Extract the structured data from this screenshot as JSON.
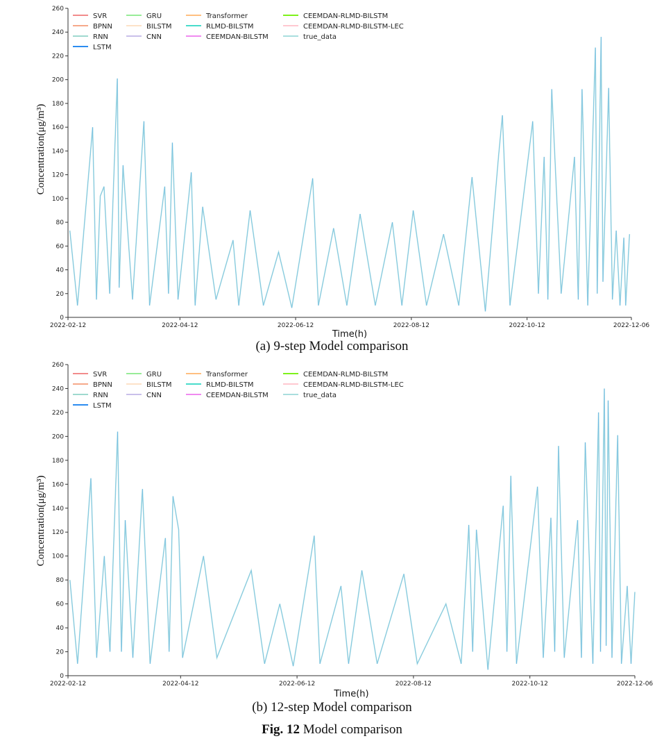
{
  "figure_caption": {
    "label": "Fig. 12",
    "text": "Model comparison"
  },
  "legend": [
    {
      "name": "SVR",
      "color": "#f28b8b"
    },
    {
      "name": "BPNN",
      "color": "#f6a98a"
    },
    {
      "name": "RNN",
      "color": "#9fd9cf"
    },
    {
      "name": "LSTM",
      "color": "#2b8cf0"
    },
    {
      "name": "GRU",
      "color": "#98ec98"
    },
    {
      "name": "BILSTM",
      "color": "#fde2c8"
    },
    {
      "name": "CNN",
      "color": "#c9c0ea"
    },
    {
      "name": "Transformer",
      "color": "#ffbf80"
    },
    {
      "name": "RLMD-BILSTM",
      "color": "#48dccb"
    },
    {
      "name": "CEEMDAN-BILSTM",
      "color": "#f08af0"
    },
    {
      "name": "CEEMDAN-RLMD-BILSTM",
      "color": "#7ef21a"
    },
    {
      "name": "CEEMDAN-RLMD-BILSTM-LEC",
      "color": "#ffc8d0"
    },
    {
      "name": "true_data",
      "color": "#a9dede"
    }
  ],
  "chart_data": [
    {
      "type": "line",
      "caption": "(a) 9-step Model comparison",
      "xlabel": "Time(h)",
      "ylabel": "Concentration(μg/m³)",
      "xlim": [
        "2022-02-12",
        "2022-12-06"
      ],
      "ylim": [
        0,
        260
      ],
      "xticks": [
        "2022-02-12",
        "2022-04-12",
        "2022-06-12",
        "2022-08-12",
        "2022-10-12",
        "2022-12-06"
      ],
      "yticks": [
        0,
        20,
        40,
        60,
        80,
        100,
        120,
        140,
        160,
        180,
        200,
        220,
        240,
        260
      ],
      "legend_position": "top-left",
      "grid": false,
      "series": [
        {
          "name": "true_data",
          "points": [
            [
              "2022-02-13",
              73
            ],
            [
              "2022-02-17",
              10
            ],
            [
              "2022-02-25",
              160
            ],
            [
              "2022-02-27",
              15
            ],
            [
              "2022-03-01",
              102
            ],
            [
              "2022-03-03",
              110
            ],
            [
              "2022-03-06",
              20
            ],
            [
              "2022-03-10",
              201
            ],
            [
              "2022-03-11",
              25
            ],
            [
              "2022-03-13",
              128
            ],
            [
              "2022-03-18",
              15
            ],
            [
              "2022-03-24",
              165
            ],
            [
              "2022-03-27",
              10
            ],
            [
              "2022-04-04",
              110
            ],
            [
              "2022-04-06",
              20
            ],
            [
              "2022-04-08",
              147
            ],
            [
              "2022-04-11",
              15
            ],
            [
              "2022-04-18",
              122
            ],
            [
              "2022-04-20",
              10
            ],
            [
              "2022-04-24",
              93
            ],
            [
              "2022-05-01",
              15
            ],
            [
              "2022-05-10",
              65
            ],
            [
              "2022-05-13",
              10
            ],
            [
              "2022-05-19",
              90
            ],
            [
              "2022-05-26",
              10
            ],
            [
              "2022-06-03",
              55
            ],
            [
              "2022-06-10",
              8
            ],
            [
              "2022-06-21",
              117
            ],
            [
              "2022-06-24",
              10
            ],
            [
              "2022-07-02",
              75
            ],
            [
              "2022-07-09",
              10
            ],
            [
              "2022-07-16",
              87
            ],
            [
              "2022-07-24",
              10
            ],
            [
              "2022-08-02",
              80
            ],
            [
              "2022-08-07",
              10
            ],
            [
              "2022-08-13",
              90
            ],
            [
              "2022-08-20",
              10
            ],
            [
              "2022-08-29",
              70
            ],
            [
              "2022-09-06",
              10
            ],
            [
              "2022-09-13",
              118
            ],
            [
              "2022-09-20",
              5
            ],
            [
              "2022-09-27",
              136
            ],
            [
              "2022-09-29",
              170
            ],
            [
              "2022-10-03",
              10
            ],
            [
              "2022-10-15",
              165
            ],
            [
              "2022-10-18",
              20
            ],
            [
              "2022-10-21",
              135
            ],
            [
              "2022-10-23",
              15
            ],
            [
              "2022-10-25",
              192
            ],
            [
              "2022-10-30",
              20
            ],
            [
              "2022-11-06",
              135
            ],
            [
              "2022-11-08",
              15
            ],
            [
              "2022-11-10",
              192
            ],
            [
              "2022-11-13",
              10
            ],
            [
              "2022-11-17",
              227
            ],
            [
              "2022-11-18",
              20
            ],
            [
              "2022-11-20",
              236
            ],
            [
              "2022-11-21",
              30
            ],
            [
              "2022-11-24",
              193
            ],
            [
              "2022-11-26",
              15
            ],
            [
              "2022-11-28",
              73
            ],
            [
              "2022-11-30",
              10
            ],
            [
              "2022-12-02",
              67
            ],
            [
              "2022-12-03",
              10
            ],
            [
              "2022-12-05",
              70
            ]
          ]
        }
      ]
    },
    {
      "type": "line",
      "caption": "(b) 12-step Model comparison",
      "xlabel": "Time(h)",
      "ylabel": "Concentration(μg/m³)",
      "xlim": [
        "2022-02-12",
        "2022-12-06"
      ],
      "ylim": [
        0,
        260
      ],
      "xticks": [
        "2022-02-12",
        "2022-04-12",
        "2022-06-12",
        "2022-08-12",
        "2022-10-12",
        "2022-12-06"
      ],
      "yticks": [
        0,
        20,
        40,
        60,
        80,
        100,
        120,
        140,
        160,
        180,
        200,
        220,
        240,
        260
      ],
      "legend_position": "top-left",
      "grid": false,
      "series": [
        {
          "name": "true_data",
          "points": [
            [
              "2022-02-13",
              80
            ],
            [
              "2022-02-17",
              10
            ],
            [
              "2022-02-24",
              165
            ],
            [
              "2022-02-27",
              15
            ],
            [
              "2022-03-03",
              100
            ],
            [
              "2022-03-06",
              20
            ],
            [
              "2022-03-10",
              204
            ],
            [
              "2022-03-12",
              20
            ],
            [
              "2022-03-14",
              130
            ],
            [
              "2022-03-18",
              15
            ],
            [
              "2022-03-23",
              156
            ],
            [
              "2022-03-27",
              10
            ],
            [
              "2022-04-04",
              115
            ],
            [
              "2022-04-06",
              20
            ],
            [
              "2022-04-08",
              150
            ],
            [
              "2022-04-11",
              122
            ],
            [
              "2022-04-13",
              15
            ],
            [
              "2022-04-24",
              100
            ],
            [
              "2022-05-01",
              15
            ],
            [
              "2022-05-19",
              88
            ],
            [
              "2022-05-26",
              10
            ],
            [
              "2022-06-03",
              60
            ],
            [
              "2022-06-10",
              8
            ],
            [
              "2022-06-21",
              117
            ],
            [
              "2022-06-24",
              10
            ],
            [
              "2022-07-05",
              75
            ],
            [
              "2022-07-09",
              10
            ],
            [
              "2022-07-16",
              88
            ],
            [
              "2022-07-24",
              10
            ],
            [
              "2022-08-07",
              85
            ],
            [
              "2022-08-14",
              10
            ],
            [
              "2022-08-29",
              60
            ],
            [
              "2022-09-06",
              10
            ],
            [
              "2022-09-10",
              126
            ],
            [
              "2022-09-12",
              20
            ],
            [
              "2022-09-14",
              122
            ],
            [
              "2022-09-20",
              5
            ],
            [
              "2022-09-28",
              142
            ],
            [
              "2022-09-30",
              20
            ],
            [
              "2022-10-02",
              167
            ],
            [
              "2022-10-05",
              10
            ],
            [
              "2022-10-16",
              158
            ],
            [
              "2022-10-19",
              15
            ],
            [
              "2022-10-23",
              132
            ],
            [
              "2022-10-25",
              20
            ],
            [
              "2022-10-27",
              192
            ],
            [
              "2022-10-30",
              15
            ],
            [
              "2022-11-06",
              130
            ],
            [
              "2022-11-08",
              15
            ],
            [
              "2022-11-10",
              195
            ],
            [
              "2022-11-14",
              10
            ],
            [
              "2022-11-17",
              220
            ],
            [
              "2022-11-18",
              20
            ],
            [
              "2022-11-20",
              240
            ],
            [
              "2022-11-21",
              25
            ],
            [
              "2022-11-22",
              230
            ],
            [
              "2022-11-24",
              15
            ],
            [
              "2022-11-27",
              201
            ],
            [
              "2022-11-29",
              10
            ],
            [
              "2022-12-02",
              75
            ],
            [
              "2022-12-04",
              10
            ],
            [
              "2022-12-06",
              70
            ]
          ]
        }
      ]
    }
  ]
}
